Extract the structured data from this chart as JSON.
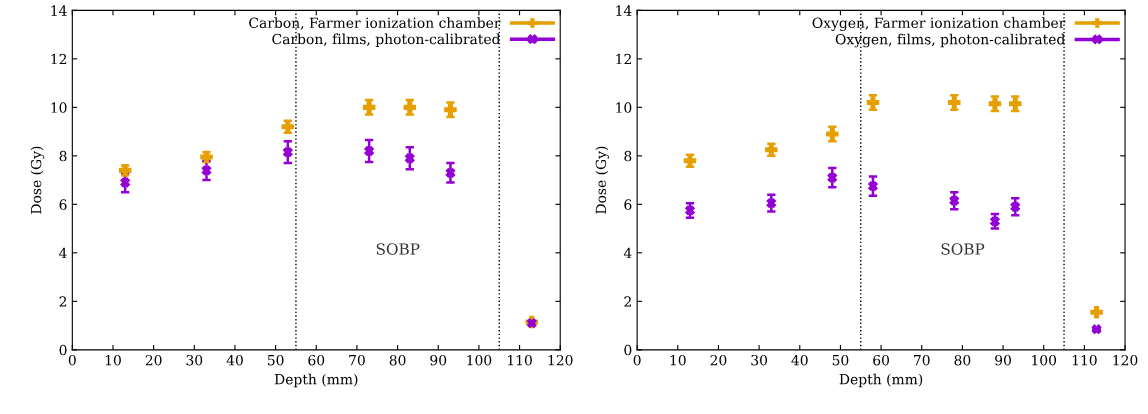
{
  "chart_data": [
    {
      "type": "scatter",
      "xlabel": "Depth (mm)",
      "ylabel": "Dose (Gy)",
      "xlim": [
        0,
        120
      ],
      "ylim": [
        0,
        14
      ],
      "xticks": [
        0,
        10,
        20,
        30,
        40,
        50,
        60,
        70,
        80,
        90,
        100,
        110,
        120
      ],
      "yticks": [
        0,
        2,
        4,
        6,
        8,
        10,
        12,
        14
      ],
      "legend": "top right",
      "grid": false,
      "x": [
        13,
        33,
        53,
        73,
        83,
        93,
        113
      ],
      "series": [
        {
          "name": "Carbon, Farmer ionization chamber",
          "color": "#e69f00",
          "marker": "cross",
          "values": [
            7.4,
            7.95,
            9.2,
            10.0,
            10.0,
            9.9,
            1.15
          ],
          "errors": [
            0.2,
            0.2,
            0.25,
            0.3,
            0.3,
            0.3,
            null
          ]
        },
        {
          "name": "Carbon, films, photon-calibrated",
          "color": "#9400d3",
          "marker": "x",
          "values": [
            6.9,
            7.4,
            8.15,
            8.2,
            7.9,
            7.3,
            1.1
          ],
          "errors": [
            0.4,
            0.4,
            0.45,
            0.45,
            0.45,
            0.4,
            null
          ]
        }
      ],
      "ref_lines": [
        {
          "axis": "x",
          "value": 55,
          "line_style": "dotted",
          "color": "#000000"
        },
        {
          "axis": "x",
          "value": 105,
          "line_style": "dotted",
          "color": "#000000"
        }
      ],
      "annotations": [
        "SOBP"
      ]
    },
    {
      "type": "scatter",
      "xlabel": "Depth (mm)",
      "ylabel": "Dose (Gy)",
      "xlim": [
        0,
        120
      ],
      "ylim": [
        0,
        14
      ],
      "xticks": [
        0,
        10,
        20,
        30,
        40,
        50,
        60,
        70,
        80,
        90,
        100,
        110,
        120
      ],
      "yticks": [
        0,
        2,
        4,
        6,
        8,
        10,
        12,
        14
      ],
      "legend": "top right",
      "grid": false,
      "x": [
        13,
        33,
        48,
        58,
        78,
        88,
        93,
        113
      ],
      "series": [
        {
          "name": "Oxygen, Farmer ionization chamber",
          "color": "#e69f00",
          "marker": "cross",
          "values": [
            7.8,
            8.25,
            8.9,
            10.2,
            10.2,
            10.15,
            10.15,
            1.55
          ],
          "errors": [
            0.25,
            0.25,
            0.3,
            0.3,
            0.3,
            0.3,
            0.3,
            null
          ]
        },
        {
          "name": "Oxygen, films, photon-calibrated",
          "color": "#9400d3",
          "marker": "x",
          "values": [
            5.75,
            6.05,
            7.1,
            6.75,
            6.15,
            5.3,
            5.9,
            0.85
          ],
          "errors": [
            0.3,
            0.35,
            0.4,
            0.4,
            0.35,
            0.3,
            0.35,
            null
          ]
        }
      ],
      "ref_lines": [
        {
          "axis": "x",
          "value": 55,
          "line_style": "dotted",
          "color": "#000000"
        },
        {
          "axis": "x",
          "value": 105,
          "line_style": "dotted",
          "color": "#000000"
        }
      ],
      "annotations": [
        "SOBP"
      ]
    }
  ]
}
